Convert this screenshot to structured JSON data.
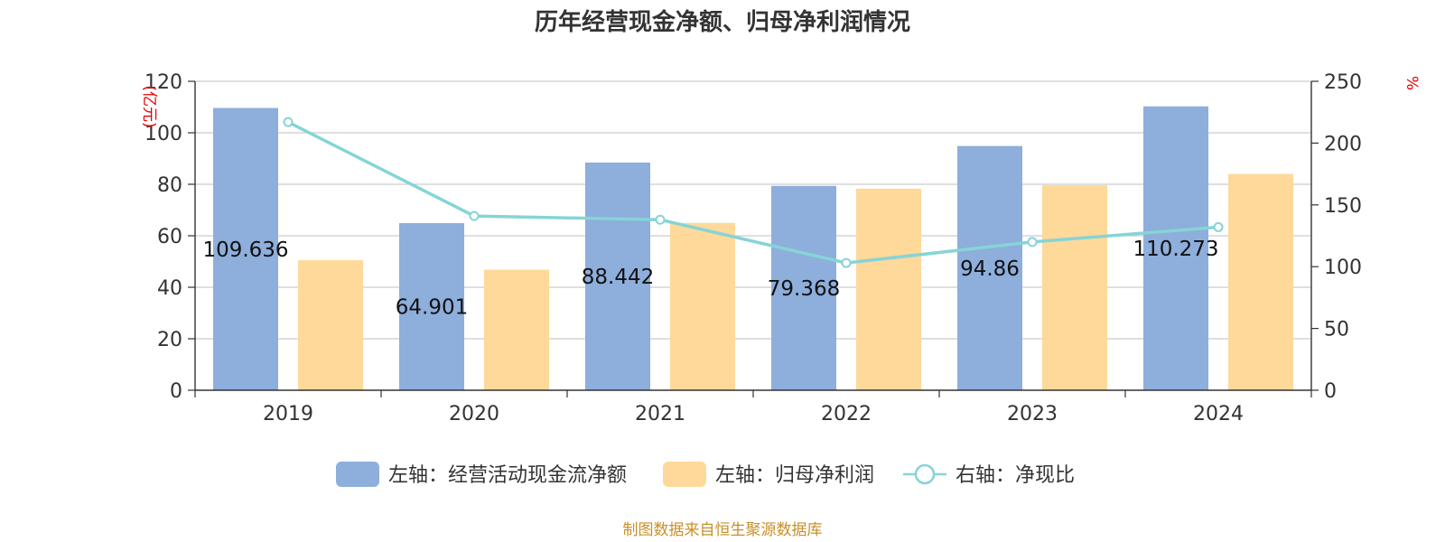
{
  "chart_data": {
    "type": "bar",
    "title": "历年经营现金净额、归母净利润情况",
    "categories": [
      "2019",
      "2020",
      "2021",
      "2022",
      "2023",
      "2024"
    ],
    "left_axis": {
      "unit": "(亿元)",
      "ylim": [
        0,
        120
      ],
      "ticks": [
        "0",
        "20",
        "40",
        "60",
        "80",
        "100",
        "120"
      ]
    },
    "right_axis": {
      "unit": "%",
      "ylim": [
        0,
        250
      ],
      "ticks": [
        "0",
        "50",
        "100",
        "150",
        "200",
        "250"
      ]
    },
    "series": [
      {
        "name": "左轴：经营活动现金流净额",
        "kind": "bar",
        "axis": "left",
        "color": "#8eaedc",
        "values": [
          109.636,
          64.901,
          88.442,
          79.368,
          94.86,
          110.273
        ],
        "labels": [
          "109.636",
          "64.901",
          "88.442",
          "79.368",
          "94.86",
          "110.273"
        ]
      },
      {
        "name": "左轴：归母净利润",
        "kind": "bar",
        "axis": "left",
        "color": "#fed99a",
        "values": [
          50.5,
          46.8,
          65.0,
          78.3,
          79.6,
          84.0
        ]
      },
      {
        "name": "右轴：净现比",
        "kind": "line",
        "axis": "right",
        "color": "#86d4d6",
        "values": [
          217,
          141,
          138,
          103,
          120,
          132
        ]
      }
    ],
    "grid": true,
    "legend_position": "bottom-center",
    "source": "制图数据来自恒生聚源数据库"
  }
}
